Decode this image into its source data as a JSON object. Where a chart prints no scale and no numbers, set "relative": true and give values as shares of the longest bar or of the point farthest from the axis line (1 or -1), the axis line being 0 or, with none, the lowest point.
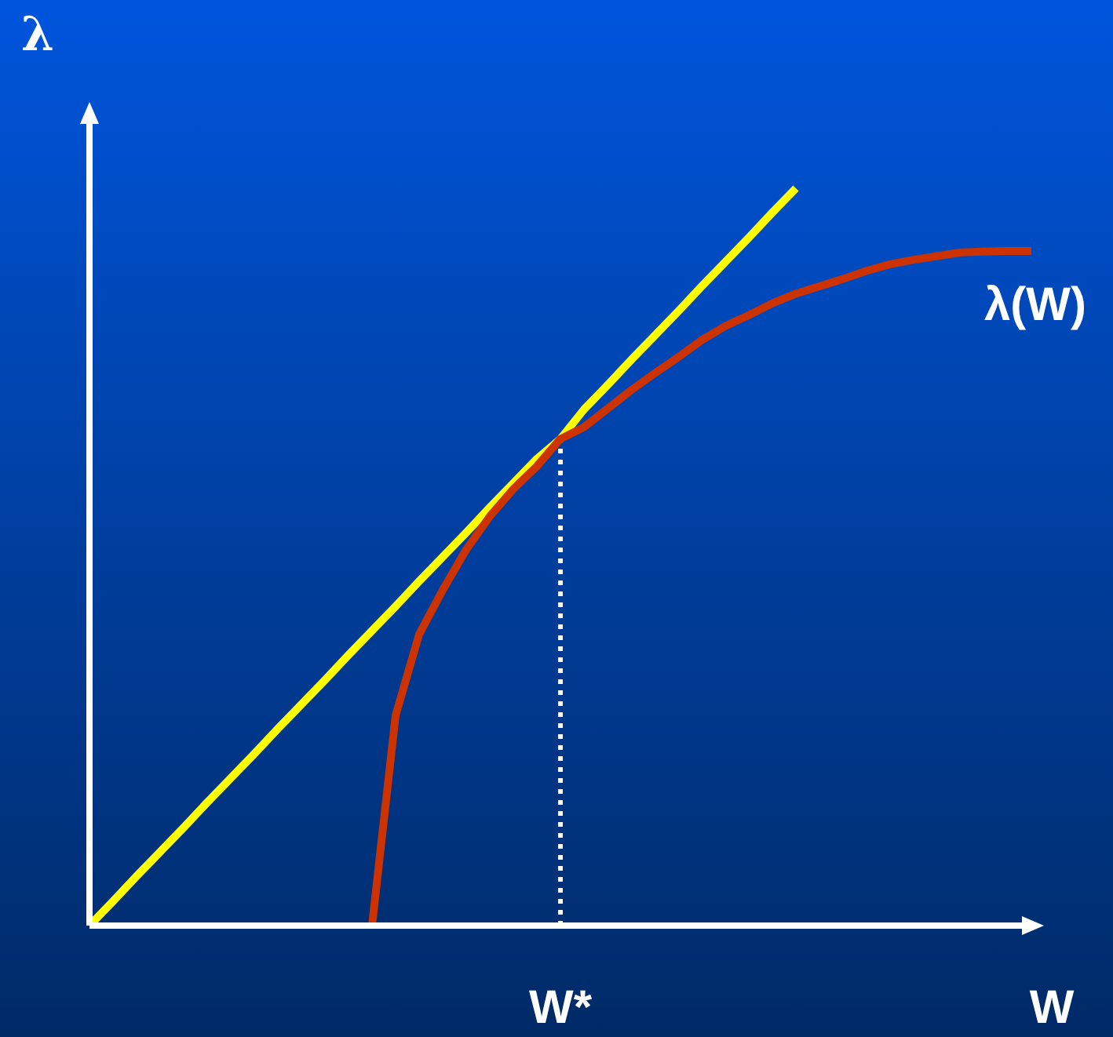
{
  "chart_data": {
    "type": "line",
    "relative": true,
    "xlabel": "W",
    "ylabel": "λ",
    "marker": "none",
    "line_style": "solid",
    "categories": [
      null,
      null,
      null,
      null,
      null,
      null,
      null,
      null,
      null,
      null,
      null,
      null,
      null,
      null,
      null,
      null,
      null,
      null,
      null,
      null,
      null,
      null,
      null,
      null,
      null,
      null,
      null,
      null,
      null,
      null,
      null,
      null,
      null,
      null,
      null,
      null,
      null,
      null,
      null,
      null,
      null
    ],
    "series": [
      {
        "color": "#ffff00",
        "values": [
          0,
          0.033,
          0.067,
          0.1,
          0.133,
          0.167,
          0.2,
          0.233,
          0.267,
          0.3,
          0.333,
          0.367,
          0.4,
          0.433,
          0.467,
          0.5,
          0.533,
          0.567,
          0.6,
          0.633,
          0.66,
          0.7,
          0.733,
          0.767,
          0.8,
          0.833,
          0.867,
          0.9,
          0.933,
          0.967,
          1,
          null,
          null,
          null,
          null,
          null,
          null,
          null,
          null,
          null,
          null
        ]
      },
      {
        "name": "λ(W)",
        "color": "#cc3300",
        "values": [
          null,
          null,
          null,
          null,
          null,
          null,
          null,
          null,
          null,
          null,
          null,
          null,
          0,
          0.285,
          0.395,
          0.455,
          0.51,
          0.555,
          0.592,
          0.623,
          0.66,
          0.676,
          0.701,
          0.726,
          0.749,
          0.771,
          0.794,
          0.813,
          0.828,
          0.844,
          0.857,
          0.867,
          0.877,
          0.888,
          0.897,
          0.903,
          0.908,
          0.913,
          0.914,
          0.915,
          0.915
        ]
      }
    ],
    "annotations": [
      "W*"
    ]
  }
}
